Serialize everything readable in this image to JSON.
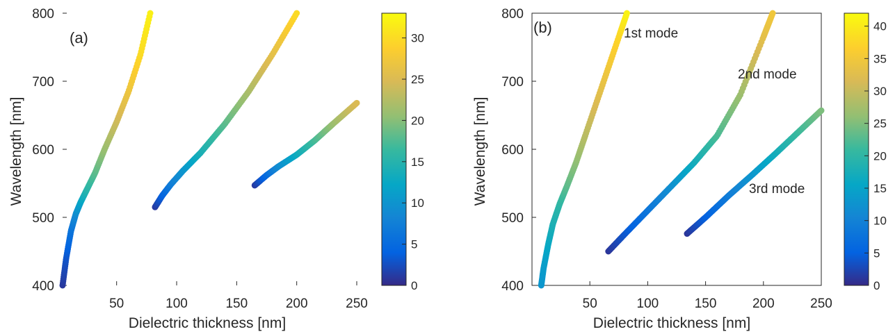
{
  "chart_data": [
    {
      "panel_label": "(a)",
      "type": "scatter",
      "xlabel": "Dielectric thickness [nm]",
      "ylabel": "Wavelength [nm]",
      "xlim": [
        5,
        250
      ],
      "ylim": [
        400,
        800
      ],
      "xticks": [
        50,
        100,
        150,
        200,
        250
      ],
      "yticks": [
        400,
        500,
        600,
        700,
        800
      ],
      "colorbar": {
        "min": 0,
        "max": 33,
        "ticks": [
          0,
          5,
          10,
          15,
          20,
          25,
          30
        ],
        "colormap": "parula"
      },
      "series": [
        {
          "x": [
            5,
            8,
            12,
            16,
            20,
            25,
            32,
            40,
            50,
            60,
            70,
            78
          ],
          "y": [
            400,
            440,
            480,
            505,
            522,
            540,
            565,
            600,
            640,
            685,
            740,
            800
          ],
          "c": [
            1,
            3,
            6,
            9,
            12,
            15,
            18,
            21,
            24,
            27,
            30,
            32
          ]
        },
        {
          "x": [
            82,
            88,
            95,
            105,
            120,
            140,
            160,
            180,
            200
          ],
          "y": [
            515,
            532,
            548,
            568,
            595,
            637,
            685,
            740,
            800
          ],
          "c": [
            1,
            4,
            7,
            10,
            14,
            18,
            22,
            26,
            30
          ]
        },
        {
          "x": [
            165,
            175,
            185,
            200,
            215,
            230,
            250
          ],
          "y": [
            547,
            562,
            575,
            592,
            613,
            637,
            668
          ],
          "c": [
            1,
            5,
            9,
            13,
            17,
            21,
            25
          ]
        }
      ]
    },
    {
      "panel_label": "(b)",
      "type": "scatter",
      "xlabel": "Dielectric thickness [nm]",
      "ylabel": "Wavelength [nm]",
      "xlim": [
        0,
        250
      ],
      "ylim": [
        400,
        800
      ],
      "xticks": [
        50,
        100,
        150,
        200,
        250
      ],
      "yticks": [
        400,
        500,
        600,
        700,
        800
      ],
      "colorbar": {
        "min": 0,
        "max": 42,
        "ticks": [
          0,
          5,
          10,
          15,
          20,
          25,
          30,
          35,
          40
        ],
        "colormap": "parula"
      },
      "annotations": [
        "1st mode",
        "2nd mode",
        "3rd mode"
      ],
      "series": [
        {
          "x": [
            8,
            10,
            14,
            18,
            24,
            30,
            38,
            46,
            56,
            66,
            76,
            82
          ],
          "y": [
            400,
            425,
            460,
            490,
            520,
            545,
            580,
            620,
            670,
            720,
            770,
            800
          ],
          "c": [
            13,
            14,
            16,
            18,
            20,
            23,
            26,
            29,
            32,
            35,
            38,
            41
          ]
        },
        {
          "x": [
            66,
            80,
            100,
            120,
            140,
            160,
            180,
            200,
            208
          ],
          "y": [
            450,
            475,
            510,
            545,
            580,
            620,
            680,
            765,
            800
          ],
          "c": [
            1,
            4,
            8,
            12,
            17,
            22,
            27,
            33,
            35
          ]
        },
        {
          "x": [
            134,
            150,
            170,
            190,
            210,
            230,
            250
          ],
          "y": [
            476,
            500,
            532,
            562,
            593,
            625,
            657
          ],
          "c": [
            1,
            5,
            9,
            13,
            17,
            21,
            25
          ]
        }
      ]
    }
  ],
  "texts": {
    "panel_a": "(a)",
    "panel_b": "(b)",
    "xlabel": "Dielectric thickness [nm]",
    "ylabel": "Wavelength [nm]",
    "mode1": "1st mode",
    "mode2": "2nd mode",
    "mode3": "3rd mode"
  }
}
